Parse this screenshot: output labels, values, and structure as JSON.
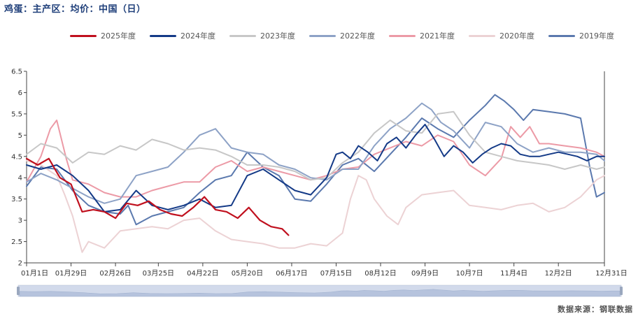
{
  "header": {
    "title": "鸡蛋：主产区：均价：中国（日）"
  },
  "footer": {
    "source": "数据来源：钢联数据"
  },
  "chart_data": {
    "type": "line",
    "title": "鸡蛋：主产区：均价：中国（日）",
    "ylim": [
      2,
      6.5
    ],
    "y_ticks": [
      "2",
      "2.5",
      "3",
      "3.5",
      "4",
      "4.5",
      "5",
      "5.5",
      "6",
      "6.5"
    ],
    "x_ticks": [
      "01月1日",
      "01月29日",
      "02月26日",
      "03月25日",
      "04月22日",
      "05月20日",
      "06月17日",
      "07月15日",
      "08月12日",
      "09月9日",
      "10月7日",
      "11月4日",
      "12月2日",
      "12月31日"
    ],
    "x_tick_days": [
      1,
      29,
      57,
      84,
      112,
      140,
      168,
      196,
      224,
      252,
      280,
      308,
      336,
      365
    ],
    "x_domain": [
      1,
      365
    ],
    "legend_position": "top",
    "series": [
      {
        "name": "2025年度",
        "color": "#c0101e",
        "width": 2.2,
        "x": [
          1,
          8,
          15,
          22,
          29,
          36,
          43,
          50,
          57,
          64,
          71,
          78,
          85,
          92,
          99,
          106,
          113,
          120,
          127,
          134,
          141,
          148,
          155,
          162,
          166
        ],
        "values": [
          4.45,
          4.3,
          4.45,
          4.0,
          3.85,
          3.2,
          3.25,
          3.2,
          3.05,
          3.4,
          3.35,
          3.45,
          3.25,
          3.15,
          3.1,
          3.3,
          3.55,
          3.25,
          3.2,
          3.05,
          3.3,
          3.0,
          2.85,
          2.8,
          2.65
        ]
      },
      {
        "name": "2024年度",
        "color": "#143a87",
        "width": 2.0,
        "x": [
          1,
          10,
          20,
          30,
          40,
          50,
          60,
          70,
          80,
          90,
          100,
          110,
          120,
          130,
          140,
          150,
          160,
          170,
          180,
          190,
          196,
          200,
          205,
          210,
          216,
          222,
          228,
          234,
          240,
          246,
          252,
          258,
          264,
          270,
          276,
          282,
          288,
          294,
          300,
          306,
          312,
          318,
          324,
          330,
          336,
          342,
          348,
          354,
          360,
          365
        ],
        "values": [
          4.3,
          4.2,
          4.3,
          4.05,
          3.7,
          3.2,
          3.25,
          3.7,
          3.35,
          3.25,
          3.35,
          3.5,
          3.3,
          3.35,
          4.05,
          4.2,
          3.95,
          3.7,
          3.6,
          4.0,
          4.55,
          4.6,
          4.45,
          4.75,
          4.6,
          4.4,
          4.8,
          4.95,
          4.7,
          5.0,
          5.25,
          4.9,
          4.5,
          4.75,
          4.6,
          4.35,
          4.55,
          4.7,
          4.8,
          4.75,
          4.55,
          4.5,
          4.5,
          4.55,
          4.6,
          4.55,
          4.5,
          4.4,
          4.5,
          4.5
        ]
      },
      {
        "name": "2023年度",
        "color": "#c7c7c7",
        "width": 2.0,
        "x": [
          1,
          10,
          20,
          30,
          40,
          50,
          60,
          70,
          80,
          90,
          100,
          110,
          120,
          130,
          140,
          150,
          160,
          170,
          180,
          190,
          200,
          210,
          220,
          230,
          240,
          250,
          260,
          270,
          280,
          290,
          300,
          310,
          320,
          330,
          340,
          350,
          360,
          365
        ],
        "values": [
          4.55,
          4.8,
          4.7,
          4.35,
          4.6,
          4.55,
          4.75,
          4.65,
          4.9,
          4.8,
          4.65,
          4.7,
          4.65,
          4.5,
          4.3,
          4.3,
          4.25,
          4.15,
          3.95,
          4.0,
          4.35,
          4.6,
          5.05,
          5.35,
          5.1,
          5.05,
          5.5,
          5.55,
          5.0,
          4.6,
          4.5,
          4.4,
          4.35,
          4.3,
          4.2,
          4.3,
          4.2,
          4.25
        ]
      },
      {
        "name": "2022年度",
        "color": "#8da2c6",
        "width": 2.0,
        "x": [
          1,
          10,
          20,
          30,
          40,
          50,
          60,
          70,
          80,
          90,
          100,
          110,
          120,
          130,
          140,
          150,
          160,
          170,
          180,
          190,
          200,
          210,
          220,
          230,
          240,
          250,
          256,
          262,
          270,
          280,
          290,
          300,
          310,
          320,
          330,
          340,
          350,
          360,
          365
        ],
        "values": [
          3.9,
          4.1,
          3.95,
          3.75,
          3.55,
          3.4,
          3.5,
          4.05,
          4.15,
          4.25,
          4.6,
          5.0,
          5.15,
          4.7,
          4.6,
          4.55,
          4.3,
          4.2,
          4.0,
          3.95,
          4.2,
          4.2,
          4.75,
          5.15,
          5.4,
          5.75,
          5.6,
          5.3,
          5.1,
          4.7,
          5.3,
          5.2,
          4.8,
          4.6,
          4.7,
          4.6,
          4.6,
          4.55,
          4.4
        ]
      },
      {
        "name": "2021年度",
        "color": "#ec9aa6",
        "width": 2.0,
        "x": [
          1,
          10,
          16,
          20,
          26,
          30,
          40,
          50,
          60,
          70,
          80,
          90,
          100,
          110,
          120,
          130,
          140,
          150,
          160,
          170,
          180,
          190,
          200,
          210,
          220,
          230,
          240,
          250,
          260,
          270,
          280,
          290,
          300,
          306,
          312,
          318,
          324,
          330,
          340,
          350,
          360,
          365
        ],
        "values": [
          3.9,
          4.5,
          5.15,
          5.35,
          4.45,
          3.95,
          3.85,
          3.65,
          3.55,
          3.55,
          3.7,
          3.8,
          3.9,
          3.9,
          4.25,
          4.4,
          4.15,
          4.25,
          4.15,
          4.05,
          3.95,
          4.05,
          4.2,
          4.25,
          4.55,
          4.7,
          4.85,
          4.75,
          5.0,
          4.85,
          4.3,
          4.05,
          4.45,
          5.2,
          4.95,
          5.2,
          4.8,
          4.8,
          4.75,
          4.7,
          4.6,
          4.5
        ]
      },
      {
        "name": "2020年度",
        "color": "#ecd2d4",
        "width": 2.0,
        "x": [
          1,
          10,
          20,
          25,
          30,
          36,
          40,
          50,
          60,
          70,
          80,
          90,
          100,
          110,
          120,
          130,
          140,
          150,
          160,
          170,
          180,
          190,
          200,
          205,
          210,
          215,
          220,
          228,
          235,
          240,
          250,
          260,
          270,
          280,
          290,
          300,
          310,
          320,
          330,
          340,
          350,
          360,
          365
        ],
        "values": [
          4.4,
          4.3,
          4.05,
          3.6,
          3.1,
          2.25,
          2.5,
          2.35,
          2.75,
          2.8,
          2.85,
          2.8,
          3.0,
          3.05,
          2.75,
          2.55,
          2.5,
          2.45,
          2.35,
          2.35,
          2.45,
          2.4,
          2.7,
          3.5,
          4.05,
          3.95,
          3.5,
          3.1,
          2.9,
          3.3,
          3.6,
          3.65,
          3.7,
          3.35,
          3.3,
          3.25,
          3.35,
          3.4,
          3.2,
          3.3,
          3.55,
          3.95,
          4.05
        ]
      },
      {
        "name": "2019年度",
        "color": "#5b79ae",
        "width": 2.0,
        "x": [
          1,
          10,
          20,
          30,
          40,
          50,
          60,
          65,
          70,
          80,
          90,
          100,
          110,
          120,
          130,
          140,
          150,
          160,
          170,
          180,
          190,
          200,
          210,
          220,
          230,
          240,
          250,
          260,
          270,
          280,
          290,
          296,
          302,
          308,
          314,
          320,
          330,
          340,
          350,
          356,
          360,
          365
        ],
        "values": [
          3.8,
          4.25,
          4.2,
          3.7,
          3.35,
          3.2,
          3.15,
          3.35,
          2.9,
          3.1,
          3.2,
          3.3,
          3.65,
          3.95,
          4.05,
          4.6,
          4.25,
          4.05,
          3.5,
          3.45,
          3.85,
          4.3,
          4.45,
          4.15,
          4.55,
          4.95,
          5.4,
          5.15,
          4.95,
          5.35,
          5.7,
          5.95,
          5.8,
          5.6,
          5.35,
          5.6,
          5.55,
          5.5,
          5.4,
          4.2,
          3.55,
          3.65
        ]
      }
    ]
  }
}
